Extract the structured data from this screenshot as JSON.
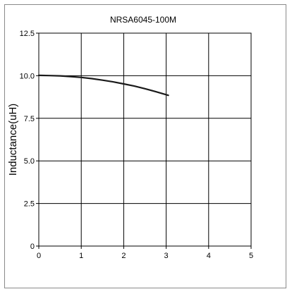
{
  "chart_data": {
    "type": "line",
    "title": "NRSA6045-100M",
    "xlabel": "",
    "ylabel": "Inductance(uH)",
    "xlim": [
      0,
      5
    ],
    "ylim": [
      0,
      12.5
    ],
    "x_ticks": [
      "0",
      "1",
      "2",
      "3",
      "4",
      "5"
    ],
    "y_ticks": [
      "0",
      "2.5",
      "5.0",
      "7.5",
      "10.0",
      "12.5"
    ],
    "grid": true,
    "series": [
      {
        "x": [
          0,
          0.25,
          0.5,
          0.75,
          1.0,
          1.25,
          1.5,
          1.75,
          2.0,
          2.25,
          2.5,
          2.75,
          3.05
        ],
        "y": [
          10.02,
          10.01,
          9.99,
          9.95,
          9.9,
          9.83,
          9.74,
          9.64,
          9.52,
          9.39,
          9.24,
          9.07,
          8.85
        ],
        "color": "#1a1a1a"
      }
    ]
  }
}
